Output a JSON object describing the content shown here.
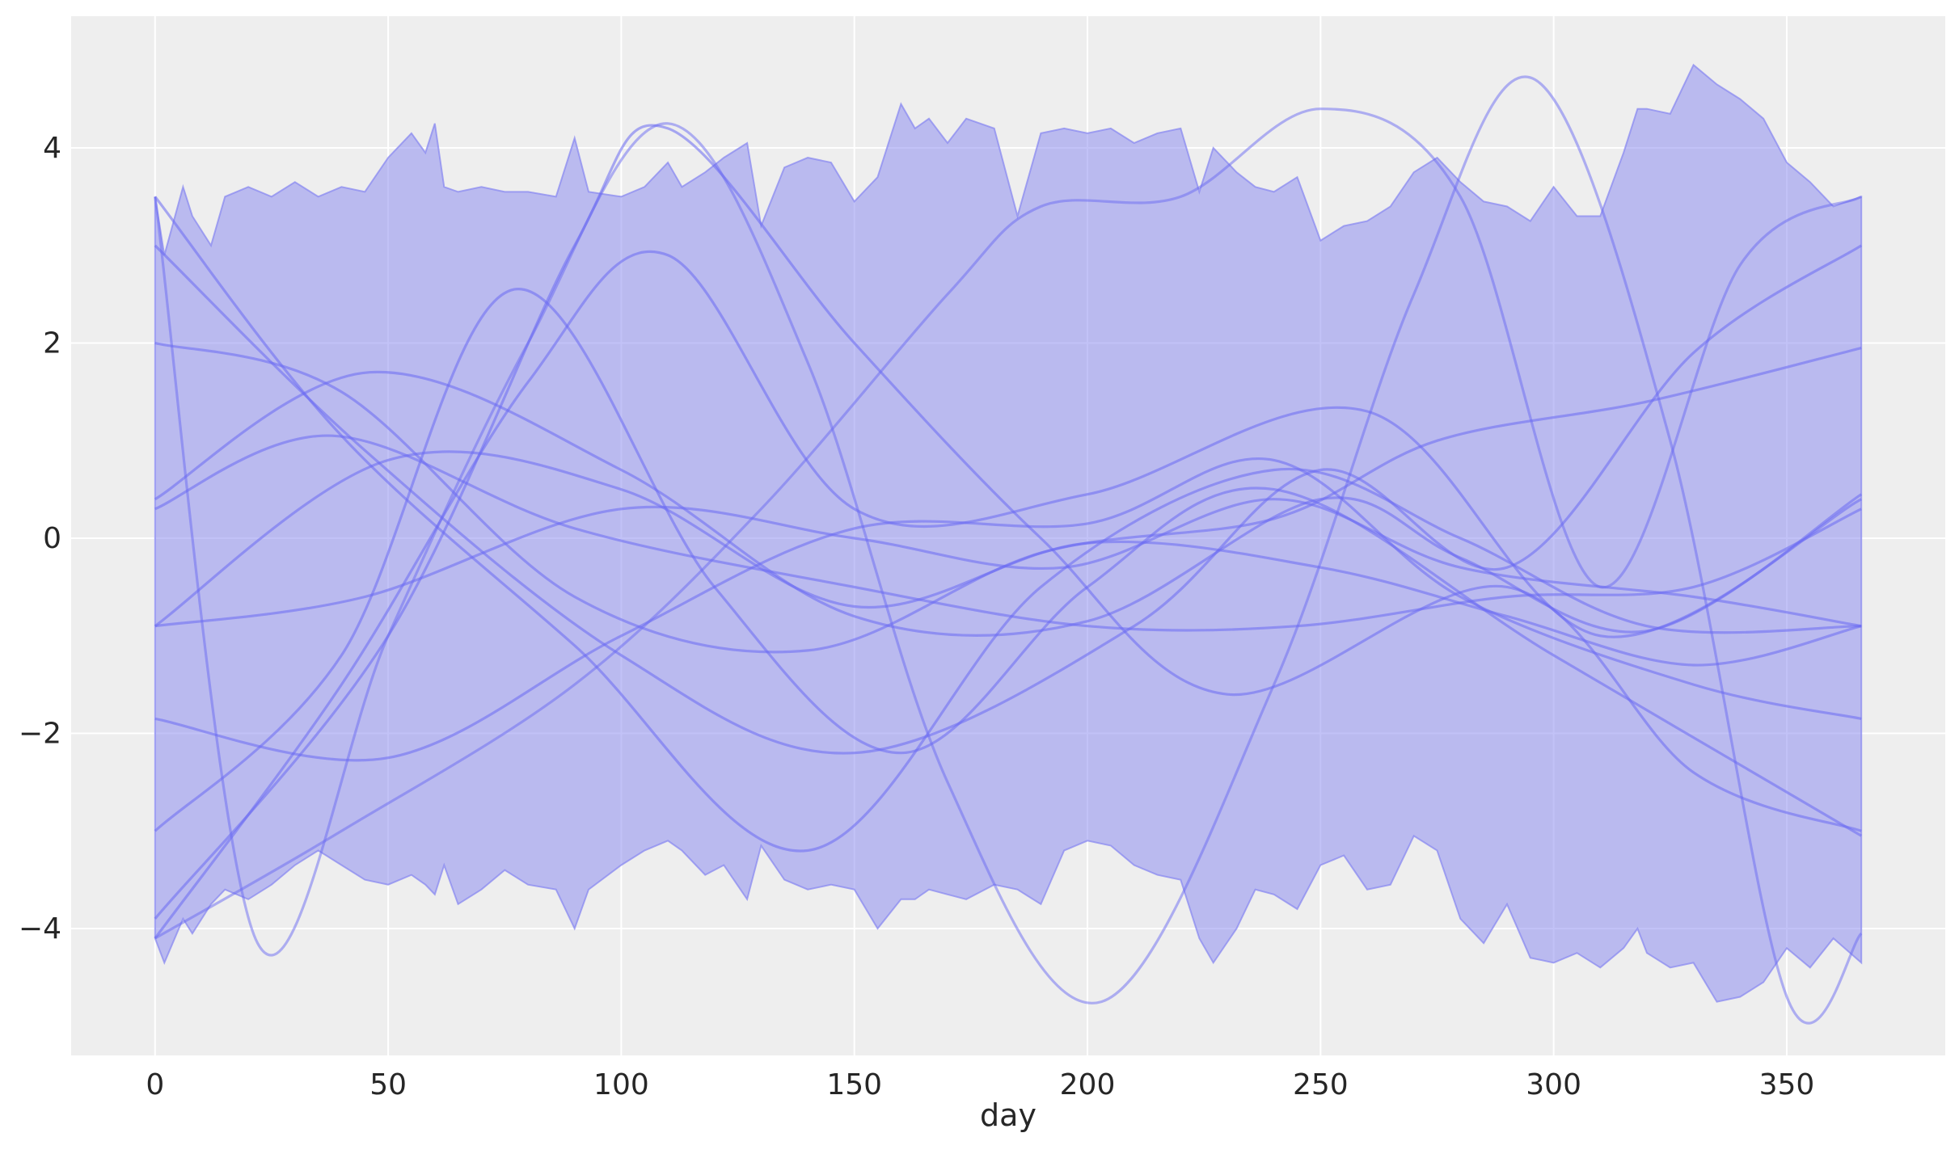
{
  "chart_data": {
    "type": "line",
    "title": "",
    "xlabel": "day",
    "ylabel": "",
    "xlim": [
      -18,
      384
    ],
    "ylim": [
      -5.3,
      5.35
    ],
    "xticks": [
      0,
      50,
      100,
      150,
      200,
      250,
      300,
      350
    ],
    "yticks": [
      -4,
      -2,
      0,
      2,
      4
    ],
    "xtick_labels": [
      "0",
      "50",
      "100",
      "150",
      "200",
      "250",
      "300",
      "350"
    ],
    "ytick_labels": [
      "−4",
      "−2",
      "0",
      "2",
      "4"
    ],
    "grid": true,
    "legend": "none",
    "colors": {
      "background": "#eeeeee",
      "grid": "#ffffff",
      "band": "#8a8af0",
      "line": "#6a6af2"
    },
    "band": {
      "name": "",
      "x_start": 0,
      "x_end": 366,
      "upper": [
        [
          0,
          3.5
        ],
        [
          2,
          2.9
        ],
        [
          6,
          3.6
        ],
        [
          8,
          3.3
        ],
        [
          12,
          3.0
        ],
        [
          15,
          3.5
        ],
        [
          20,
          3.6
        ],
        [
          25,
          3.5
        ],
        [
          30,
          3.65
        ],
        [
          35,
          3.5
        ],
        [
          40,
          3.6
        ],
        [
          45,
          3.55
        ],
        [
          50,
          3.9
        ],
        [
          55,
          4.15
        ],
        [
          58,
          3.95
        ],
        [
          60,
          4.25
        ],
        [
          62,
          3.6
        ],
        [
          65,
          3.55
        ],
        [
          70,
          3.6
        ],
        [
          75,
          3.55
        ],
        [
          80,
          3.55
        ],
        [
          86,
          3.5
        ],
        [
          90,
          4.1
        ],
        [
          93,
          3.55
        ],
        [
          100,
          3.5
        ],
        [
          105,
          3.6
        ],
        [
          110,
          3.85
        ],
        [
          113,
          3.6
        ],
        [
          118,
          3.75
        ],
        [
          122,
          3.9
        ],
        [
          127,
          4.05
        ],
        [
          130,
          3.2
        ],
        [
          135,
          3.8
        ],
        [
          140,
          3.9
        ],
        [
          145,
          3.85
        ],
        [
          150,
          3.45
        ],
        [
          155,
          3.7
        ],
        [
          160,
          4.45
        ],
        [
          163,
          4.2
        ],
        [
          166,
          4.3
        ],
        [
          170,
          4.05
        ],
        [
          174,
          4.3
        ],
        [
          180,
          4.2
        ],
        [
          185,
          3.3
        ],
        [
          190,
          4.15
        ],
        [
          195,
          4.2
        ],
        [
          200,
          4.15
        ],
        [
          205,
          4.2
        ],
        [
          210,
          4.05
        ],
        [
          215,
          4.15
        ],
        [
          220,
          4.2
        ],
        [
          224,
          3.55
        ],
        [
          227,
          4.0
        ],
        [
          232,
          3.75
        ],
        [
          236,
          3.6
        ],
        [
          240,
          3.55
        ],
        [
          245,
          3.7
        ],
        [
          250,
          3.05
        ],
        [
          255,
          3.2
        ],
        [
          260,
          3.25
        ],
        [
          265,
          3.4
        ],
        [
          270,
          3.75
        ],
        [
          275,
          3.9
        ],
        [
          280,
          3.65
        ],
        [
          285,
          3.45
        ],
        [
          290,
          3.4
        ],
        [
          295,
          3.25
        ],
        [
          300,
          3.6
        ],
        [
          305,
          3.3
        ],
        [
          310,
          3.3
        ],
        [
          315,
          3.95
        ],
        [
          318,
          4.4
        ],
        [
          320,
          4.4
        ],
        [
          325,
          4.35
        ],
        [
          330,
          4.85
        ],
        [
          335,
          4.65
        ],
        [
          340,
          4.5
        ],
        [
          345,
          4.3
        ],
        [
          350,
          3.85
        ],
        [
          355,
          3.65
        ],
        [
          360,
          3.4
        ],
        [
          366,
          3.5
        ]
      ],
      "lower": [
        [
          0,
          -4.1
        ],
        [
          2,
          -4.35
        ],
        [
          6,
          -3.9
        ],
        [
          8,
          -4.05
        ],
        [
          12,
          -3.75
        ],
        [
          15,
          -3.6
        ],
        [
          20,
          -3.7
        ],
        [
          25,
          -3.55
        ],
        [
          30,
          -3.35
        ],
        [
          35,
          -3.2
        ],
        [
          40,
          -3.35
        ],
        [
          45,
          -3.5
        ],
        [
          50,
          -3.55
        ],
        [
          55,
          -3.45
        ],
        [
          58,
          -3.55
        ],
        [
          60,
          -3.65
        ],
        [
          62,
          -3.35
        ],
        [
          65,
          -3.75
        ],
        [
          70,
          -3.6
        ],
        [
          75,
          -3.4
        ],
        [
          80,
          -3.55
        ],
        [
          86,
          -3.6
        ],
        [
          90,
          -4.0
        ],
        [
          93,
          -3.6
        ],
        [
          100,
          -3.35
        ],
        [
          105,
          -3.2
        ],
        [
          110,
          -3.1
        ],
        [
          113,
          -3.2
        ],
        [
          118,
          -3.45
        ],
        [
          122,
          -3.35
        ],
        [
          127,
          -3.7
        ],
        [
          130,
          -3.15
        ],
        [
          135,
          -3.5
        ],
        [
          140,
          -3.6
        ],
        [
          145,
          -3.55
        ],
        [
          150,
          -3.6
        ],
        [
          155,
          -4.0
        ],
        [
          160,
          -3.7
        ],
        [
          163,
          -3.7
        ],
        [
          166,
          -3.6
        ],
        [
          170,
          -3.65
        ],
        [
          174,
          -3.7
        ],
        [
          180,
          -3.55
        ],
        [
          185,
          -3.6
        ],
        [
          190,
          -3.75
        ],
        [
          195,
          -3.2
        ],
        [
          200,
          -3.1
        ],
        [
          205,
          -3.15
        ],
        [
          210,
          -3.35
        ],
        [
          215,
          -3.45
        ],
        [
          220,
          -3.5
        ],
        [
          224,
          -4.1
        ],
        [
          227,
          -4.35
        ],
        [
          232,
          -4.0
        ],
        [
          236,
          -3.6
        ],
        [
          240,
          -3.65
        ],
        [
          245,
          -3.8
        ],
        [
          250,
          -3.35
        ],
        [
          255,
          -3.25
        ],
        [
          260,
          -3.6
        ],
        [
          265,
          -3.55
        ],
        [
          270,
          -3.05
        ],
        [
          275,
          -3.2
        ],
        [
          280,
          -3.9
        ],
        [
          285,
          -4.15
        ],
        [
          290,
          -3.75
        ],
        [
          295,
          -4.3
        ],
        [
          300,
          -4.35
        ],
        [
          305,
          -4.25
        ],
        [
          310,
          -4.4
        ],
        [
          315,
          -4.2
        ],
        [
          318,
          -4.0
        ],
        [
          320,
          -4.25
        ],
        [
          325,
          -4.4
        ],
        [
          330,
          -4.35
        ],
        [
          335,
          -4.75
        ],
        [
          340,
          -4.7
        ],
        [
          345,
          -4.55
        ],
        [
          350,
          -4.2
        ],
        [
          355,
          -4.4
        ],
        [
          360,
          -4.1
        ],
        [
          366,
          -4.35
        ]
      ]
    },
    "series": [
      {
        "values": [
          [
            0,
            3.5
          ],
          [
            40,
            1.05
          ],
          [
            90,
            -1.1
          ],
          [
            140,
            -3.2
          ],
          [
            190,
            -0.5
          ],
          [
            240,
            0.7
          ],
          [
            280,
            0.0
          ],
          [
            320,
            -0.9
          ],
          [
            366,
            -0.9
          ]
        ]
      },
      {
        "values": [
          [
            0,
            3.0
          ],
          [
            45,
            0.9
          ],
          [
            100,
            -1.2
          ],
          [
            150,
            -2.2
          ],
          [
            210,
            -0.9
          ],
          [
            250,
            0.7
          ],
          [
            290,
            -0.3
          ],
          [
            330,
            1.9
          ],
          [
            366,
            3.0
          ]
        ]
      },
      {
        "values": [
          [
            0,
            2.0
          ],
          [
            40,
            1.5
          ],
          [
            90,
            -0.6
          ],
          [
            140,
            -1.15
          ],
          [
            190,
            -0.15
          ],
          [
            240,
            0.2
          ],
          [
            275,
            1.0
          ],
          [
            320,
            1.4
          ],
          [
            366,
            1.95
          ]
        ]
      },
      {
        "values": [
          [
            0,
            0.4
          ],
          [
            46,
            1.7
          ],
          [
            100,
            0.7
          ],
          [
            150,
            -0.8
          ],
          [
            200,
            -0.85
          ],
          [
            250,
            0.4
          ],
          [
            280,
            -0.2
          ],
          [
            320,
            -0.95
          ],
          [
            366,
            0.45
          ]
        ]
      },
      {
        "values": [
          [
            0,
            0.3
          ],
          [
            38,
            1.05
          ],
          [
            90,
            0.1
          ],
          [
            150,
            -0.5
          ],
          [
            200,
            -0.9
          ],
          [
            245,
            -0.9
          ],
          [
            290,
            -0.6
          ],
          [
            330,
            -0.5
          ],
          [
            366,
            0.3
          ]
        ]
      },
      {
        "values": [
          [
            0,
            -0.9
          ],
          [
            50,
            0.8
          ],
          [
            100,
            0.5
          ],
          [
            150,
            -0.7
          ],
          [
            200,
            -0.05
          ],
          [
            250,
            -0.3
          ],
          [
            290,
            -0.8
          ],
          [
            330,
            -1.3
          ],
          [
            366,
            -0.9
          ]
        ]
      },
      {
        "values": [
          [
            0,
            -0.9
          ],
          [
            45,
            -0.6
          ],
          [
            100,
            0.3
          ],
          [
            150,
            0.0
          ],
          [
            195,
            -0.3
          ],
          [
            240,
            0.4
          ],
          [
            280,
            -0.3
          ],
          [
            330,
            -0.6
          ],
          [
            366,
            -0.9
          ]
        ]
      },
      {
        "values": [
          [
            0,
            -1.85
          ],
          [
            50,
            -2.25
          ],
          [
            100,
            -1.0
          ],
          [
            150,
            0.1
          ],
          [
            200,
            0.15
          ],
          [
            240,
            0.8
          ],
          [
            280,
            -0.6
          ],
          [
            330,
            -1.5
          ],
          [
            366,
            -1.85
          ]
        ]
      },
      {
        "values": [
          [
            0,
            -3.0
          ],
          [
            40,
            -1.2
          ],
          [
            77,
            2.55
          ],
          [
            120,
            -0.5
          ],
          [
            160,
            -2.2
          ],
          [
            200,
            -0.5
          ],
          [
            240,
            0.5
          ],
          [
            300,
            -1.2
          ],
          [
            366,
            -3.05
          ]
        ]
      },
      {
        "values": [
          [
            0,
            -4.1
          ],
          [
            40,
            -1.5
          ],
          [
            80,
            1.6
          ],
          [
            110,
            2.9
          ],
          [
            150,
            0.3
          ],
          [
            200,
            0.45
          ],
          [
            260,
            1.3
          ],
          [
            310,
            -1.0
          ],
          [
            366,
            0.4
          ]
        ]
      },
      {
        "values": [
          [
            0,
            -3.9
          ],
          [
            50,
            -1.0
          ],
          [
            90,
            3.0
          ],
          [
            110,
            4.2
          ],
          [
            150,
            2.0
          ],
          [
            190,
            0.0
          ],
          [
            230,
            -1.6
          ],
          [
            290,
            -0.5
          ],
          [
            330,
            -2.4
          ],
          [
            366,
            -3.0
          ]
        ]
      }
    ],
    "highlight_series": [
      {
        "values": [
          [
            0,
            3.5
          ],
          [
            22,
            -4.15
          ],
          [
            50,
            -1.0
          ],
          [
            80,
            2.0
          ],
          [
            110,
            4.25
          ],
          [
            140,
            1.8
          ],
          [
            170,
            -2.5
          ],
          [
            203,
            -4.75
          ],
          [
            240,
            -1.5
          ],
          [
            270,
            2.5
          ],
          [
            296,
            4.7
          ],
          [
            325,
            1.0
          ],
          [
            350,
            -4.7
          ],
          [
            366,
            -4.05
          ]
        ]
      },
      {
        "values": [
          [
            0,
            -4.1
          ],
          [
            40,
            -3.0
          ],
          [
            90,
            -1.5
          ],
          [
            130,
            0.3
          ],
          [
            170,
            2.5
          ],
          [
            190,
            3.4
          ],
          [
            220,
            3.5
          ],
          [
            250,
            4.4
          ],
          [
            280,
            3.5
          ],
          [
            310,
            -0.5
          ],
          [
            340,
            2.8
          ],
          [
            366,
            3.5
          ]
        ]
      }
    ]
  }
}
